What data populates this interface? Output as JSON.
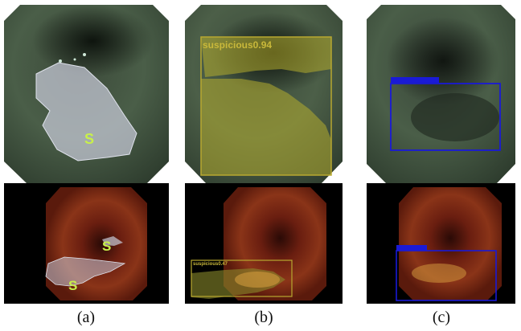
{
  "figure": {
    "captions": [
      "(a)",
      "(b)",
      "(c)"
    ],
    "top_row": {
      "a_region_label": "S",
      "b_box_label": "suspicious0.94"
    },
    "bottom_row": {
      "a_region_labels": [
        "S",
        "S"
      ],
      "b_box_label": "suspicious0.47"
    },
    "colors": {
      "annotation_fill": "#c8cbd8",
      "annotation_text": "#c8f04a",
      "yolo_box": "#b8a830",
      "blue_box": "#1a1ad6"
    }
  }
}
